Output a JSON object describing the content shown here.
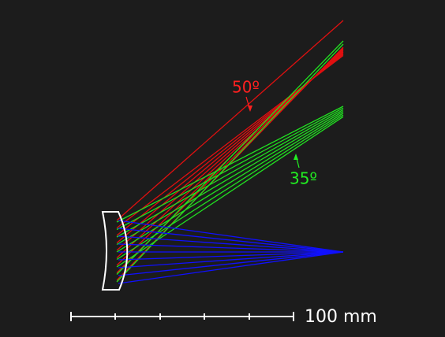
{
  "labels": {
    "red_angle": "50º",
    "green_angle": "35º"
  },
  "scale_bar": {
    "label": "100 mm"
  }
}
